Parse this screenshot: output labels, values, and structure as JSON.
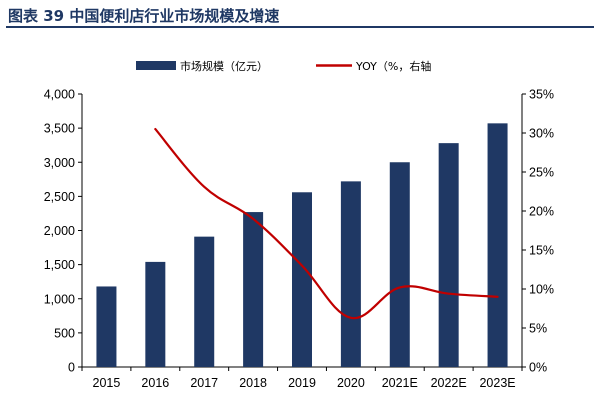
{
  "header": {
    "title": "图表 39 中国便利店行业市场规模及增速",
    "title_color": "#1f3864"
  },
  "chart_data": {
    "type": "bar",
    "title": "图表 39 中国便利店行业市场规模及增速",
    "categories": [
      "2015",
      "2016",
      "2017",
      "2018",
      "2019",
      "2020",
      "2021E",
      "2022E",
      "2023E"
    ],
    "series": [
      {
        "name": "市场规模（亿元）",
        "type": "bar",
        "axis": "left",
        "color": "#1f3864",
        "values": [
          1180,
          1540,
          1910,
          2270,
          2560,
          2720,
          3000,
          3280,
          3570
        ]
      },
      {
        "name": "YOY（%，右轴",
        "type": "line",
        "axis": "right",
        "color": "#c00000",
        "values": [
          null,
          30.5,
          23.1,
          19.0,
          13.0,
          6.3,
          10.2,
          9.4,
          9.0
        ]
      }
    ],
    "y_left": {
      "lim": [
        0,
        4000
      ],
      "ticks": [
        0,
        500,
        1000,
        1500,
        2000,
        2500,
        3000,
        3500,
        4000
      ],
      "tick_labels": [
        "0",
        "500",
        "1,000",
        "1,500",
        "2,000",
        "2,500",
        "3,000",
        "3,500",
        "4,000"
      ]
    },
    "y_right": {
      "lim": [
        0,
        35
      ],
      "ticks": [
        0,
        5,
        10,
        15,
        20,
        25,
        30,
        35
      ],
      "tick_labels": [
        "0%",
        "5%",
        "10%",
        "15%",
        "20%",
        "25%",
        "30%",
        "35%"
      ]
    },
    "legend": {
      "placement": "top-center"
    },
    "grid": false
  }
}
